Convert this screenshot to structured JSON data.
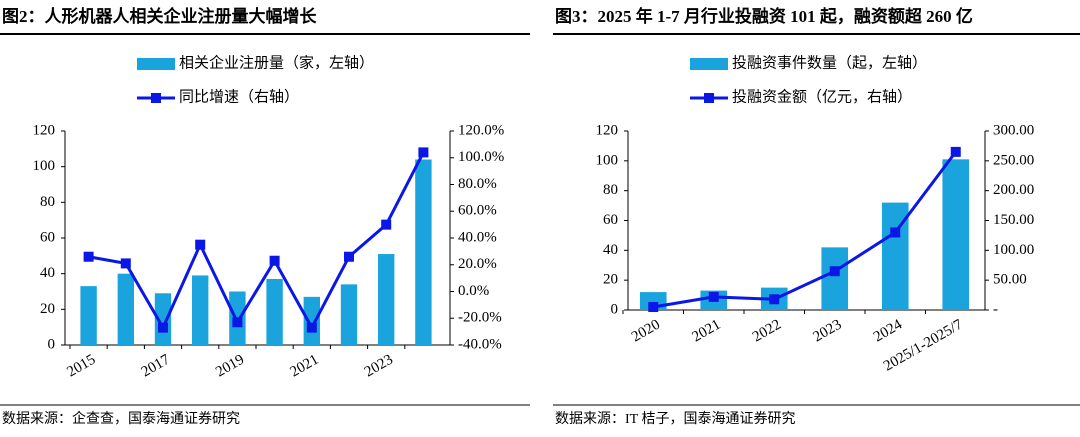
{
  "chart_data": [
    {
      "type": "combo",
      "title": "图2：人形机器人相关企业注册量大幅增长",
      "source": "数据来源：企查查，国泰海通证券研究",
      "categories": [
        "2015",
        null,
        "2017",
        null,
        "2019",
        null,
        "2021",
        null,
        "2023",
        null
      ],
      "series": [
        {
          "name": "相关企业注册量（家，左轴）",
          "type": "bar",
          "color": "#1aa3dc",
          "values": [
            33,
            40,
            29,
            39,
            30,
            37,
            27,
            34,
            51,
            104
          ]
        },
        {
          "name": "同比增速（右轴）",
          "type": "line",
          "axis": "y2",
          "color": "#0a17e6",
          "values": [
            26,
            21,
            -27,
            35,
            -23,
            23,
            -27,
            26,
            50,
            104
          ]
        }
      ],
      "ylim": [
        0,
        120
      ],
      "yticks": [
        0,
        20,
        40,
        60,
        80,
        100,
        120
      ],
      "y2lim": [
        -40,
        120
      ],
      "y2ticks": [
        {
          "value": -40,
          "label": "-40.0%"
        },
        {
          "value": -20,
          "label": "-20.0%"
        },
        {
          "value": 0,
          "label": "0.0%"
        },
        {
          "value": 20,
          "label": "20.0%"
        },
        {
          "value": 40,
          "label": "40.0%"
        },
        {
          "value": 60,
          "label": "60.0%"
        },
        {
          "value": 80,
          "label": "80.0%"
        },
        {
          "value": 100,
          "label": "100.0%"
        },
        {
          "value": 120,
          "label": "120.0%"
        }
      ]
    },
    {
      "type": "combo",
      "title": "图3：2025 年 1-7 月行业投融资 101 起，融资额超 260 亿",
      "source": "数据来源：IT 桔子，国泰海通证券研究",
      "categories": [
        "2020",
        "2021",
        "2022",
        "2023",
        "2024",
        "2025/1-2025/7"
      ],
      "series": [
        {
          "name": "投融资事件数量（起，左轴）",
          "type": "bar",
          "color": "#1aa3dc",
          "values": [
            12,
            13,
            15,
            42,
            72,
            101
          ]
        },
        {
          "name": "投融资金额（亿元，右轴）",
          "type": "line",
          "axis": "y2",
          "color": "#0a17e6",
          "values": [
            5,
            22,
            18,
            65,
            130,
            265
          ]
        }
      ],
      "ylim": [
        0,
        120
      ],
      "yticks": [
        0,
        20,
        40,
        60,
        80,
        100,
        120
      ],
      "y2lim": [
        0,
        300
      ],
      "y2ticks": [
        {
          "value": 0,
          "label": "-"
        },
        {
          "value": 50,
          "label": "50.00"
        },
        {
          "value": 100,
          "label": "100.00"
        },
        {
          "value": 150,
          "label": "150.00"
        },
        {
          "value": 200,
          "label": "200.00"
        },
        {
          "value": 250,
          "label": "250.00"
        },
        {
          "value": 300,
          "label": "300.00"
        }
      ]
    }
  ]
}
